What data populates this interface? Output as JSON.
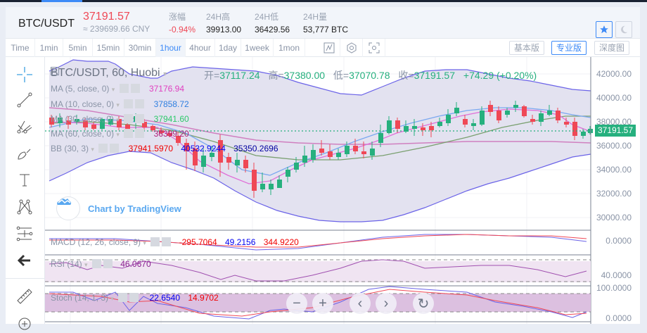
{
  "header": {
    "pair": "BTC/USDT",
    "price": "37191.57",
    "price_cny": "≈ 239699.66 CNY",
    "stats": [
      {
        "label": "涨幅",
        "value": "-0.94%",
        "negative": true
      },
      {
        "label": "24H高",
        "value": "39913.00"
      },
      {
        "label": "24H低",
        "value": "36429.56"
      },
      {
        "label": "24H量",
        "value": "53,777 BTC"
      }
    ],
    "favorite_icon": "star-icon",
    "theme_icon": "moon-icon"
  },
  "toolbar": {
    "intervals": [
      "Time",
      "1min",
      "5min",
      "15min",
      "30min",
      "1hour",
      "4hour",
      "1day",
      "1week",
      "1mon"
    ],
    "active_interval": "1hour",
    "icons": [
      "indicator-icon",
      "settings-hex-icon",
      "fullscreen-icon"
    ],
    "modes": [
      "基本版",
      "专业版",
      "深度图"
    ],
    "active_mode": "专业版"
  },
  "drawing_tools": [
    "crosshair-icon",
    "trend-line-icon",
    "pitchfork-icon",
    "brush-icon",
    "text-icon",
    "pattern-icon",
    "measure-icon",
    "back-arrow-icon",
    "ruler-icon",
    "zoom-in-icon"
  ],
  "chart": {
    "title": "BTC/USDT, 60, Huobi",
    "ohlc": {
      "open_label": "开=",
      "open": "37117.24",
      "high_label": "高=",
      "high": "37380.00",
      "low_label": "低=",
      "low": "37070.78",
      "close_label": "收=",
      "close": "37191.57",
      "change": "+74.29 (+0.20%)"
    },
    "indicators": [
      {
        "name": "MA (5, close, 0)",
        "values": [
          "37176.94"
        ],
        "colors": [
          "#e040c0"
        ]
      },
      {
        "name": "MA (10, close, 0)",
        "values": [
          "37858.72"
        ],
        "colors": [
          "#2f7fe0"
        ]
      },
      {
        "name": "MA (30, close, 0)",
        "values": [
          "37941.60"
        ],
        "colors": [
          "#2dc96a"
        ]
      },
      {
        "name": "MA (60, close, 0)",
        "values": [
          "36399.20"
        ],
        "colors": [
          "#b0207a"
        ]
      },
      {
        "name": "BB (30, 3)",
        "values": [
          "37941.5970",
          "40532.9244",
          "35350.2696"
        ],
        "colors": [
          "#f00000",
          "#0000f0",
          "#0000a0"
        ]
      }
    ],
    "y_axis": [
      "42000.00",
      "40000.00",
      "38000.00",
      "36000.00",
      "34000.00",
      "32000.00",
      "30000.00"
    ],
    "last_price_tag": "37191.57",
    "watermark": "Chart by TradingView",
    "macd": {
      "name": "MACD (12, 26, close, 9)",
      "values": [
        "-295.7064",
        "49.2156",
        "344.9220"
      ],
      "axis": "0.0000"
    },
    "rsi": {
      "name": "RSI (14)",
      "value": "46.0670",
      "axis": "40.0000"
    },
    "stoch": {
      "name": "Stoch (14, 1, 3)",
      "values": [
        "22.6540",
        "14.9702"
      ],
      "axis_top": "100.0000",
      "axis_bottom": "0.0000"
    },
    "nav_buttons": [
      "zoom-out-icon",
      "zoom-in-icon",
      "scroll-left-icon",
      "scroll-right-icon",
      "reset-icon"
    ]
  },
  "colors": {
    "up": "#26b07e",
    "down": "#ef4856",
    "accent": "#3d8af7",
    "bb_fill": "#e3e2f0",
    "bb_line": "#6b63e8"
  }
}
